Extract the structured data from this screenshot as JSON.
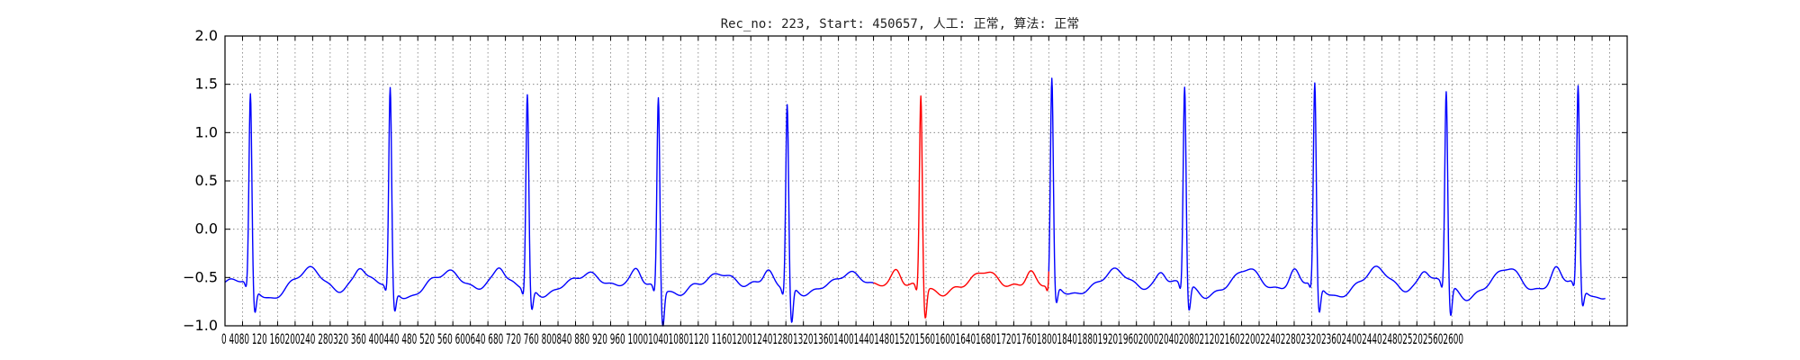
{
  "chart_data": {
    "type": "line",
    "title": "Rec_no: 223, Start: 450657, 人工: 正常, 算法: 正常",
    "xlabel": "",
    "ylabel": "",
    "xlim": [
      0,
      3200
    ],
    "ylim": [
      -1.0,
      2.0
    ],
    "grid": true,
    "y_ticks": [
      -1.0,
      -0.5,
      0.0,
      0.5,
      1.0,
      1.5,
      2.0
    ],
    "y_tick_labels": [
      "−1.0",
      "−0.5",
      "0.0",
      "0.5",
      "1.0",
      "1.5",
      "2.0"
    ],
    "x_ticks": [
      0,
      40,
      80,
      120,
      160,
      200,
      240,
      280,
      320,
      360,
      400,
      440,
      480,
      520,
      560,
      600,
      640,
      680,
      720,
      760,
      800,
      840,
      880,
      920,
      960,
      1000,
      1040,
      1080,
      1120,
      1160,
      1200,
      1240,
      1280,
      1320,
      1360,
      1400,
      1440,
      1480,
      1520,
      1560,
      1600,
      1640,
      1680,
      1720,
      1760,
      1800,
      1840,
      1880,
      1920,
      1960,
      2000,
      2040,
      2080,
      2120,
      2160,
      2200,
      2240,
      2280,
      2320,
      2360,
      2400,
      2440,
      2480,
      2520,
      2560,
      2600,
      2640,
      2680,
      2720,
      2760,
      2800,
      2840,
      2880,
      2920,
      2960,
      3000,
      3040,
      3080,
      3120,
      3160,
      3200
    ],
    "x_tick_labels_visible": "0 4080 120 160200240 280320 360 400440 480 520 560 600640 680 720 760 800840 880 920 960 1000104010801120 1160120012401280132013601400144014801520156016001640168017201760180018401880192019602000204020802120216022002240228023202360240024402480252025602600",
    "beat_centers": [
      58,
      377,
      690,
      989,
      1283,
      1588,
      1887,
      2190,
      2487,
      2787,
      3088
    ],
    "beat_peaks": [
      1.4,
      1.5,
      1.45,
      1.43,
      1.35,
      1.43,
      1.57,
      1.5,
      1.5,
      1.45,
      1.48
    ],
    "beat_s_depth": [
      -0.82,
      -0.78,
      -0.78,
      -0.93,
      -0.93,
      -0.87,
      -0.75,
      -0.82,
      -0.85,
      -0.87,
      -0.75
    ],
    "series": [
      {
        "color": "#0000ff",
        "segments": [
          {
            "from": 0,
            "to": 1480
          },
          {
            "from": 1880,
            "to": 3200
          }
        ]
      },
      {
        "color": "#ff0000",
        "segments": [
          {
            "from": 1480,
            "to": 1880
          }
        ]
      }
    ]
  }
}
